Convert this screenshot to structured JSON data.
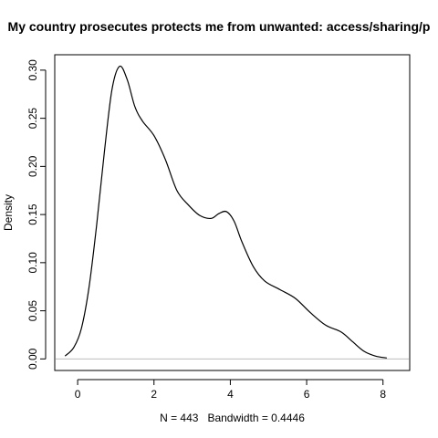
{
  "chart_data": {
    "type": "line",
    "title": "My country prosecutes protects me from unwanted: access/sharing/p",
    "xlabel": "N = 443   Bandwidth = 0.4446",
    "ylabel": "Density",
    "xlim": [
      -0.6,
      8.7
    ],
    "ylim": [
      -0.012,
      0.316
    ],
    "x_ticks": [
      0,
      2,
      4,
      6,
      8
    ],
    "x_tick_labels": [
      "0",
      "2",
      "4",
      "6",
      "8"
    ],
    "y_ticks": [
      0.0,
      0.05,
      0.1,
      0.15,
      0.2,
      0.25,
      0.3
    ],
    "y_tick_labels": [
      "0.00",
      "0.05",
      "0.10",
      "0.15",
      "0.20",
      "0.25",
      "0.30"
    ],
    "grid": false,
    "series": [
      {
        "x": [
          -0.33,
          -0.1,
          0.1,
          0.3,
          0.5,
          0.7,
          0.9,
          1.1,
          1.3,
          1.5,
          1.7,
          2.0,
          2.3,
          2.6,
          2.9,
          3.2,
          3.5,
          3.7,
          3.9,
          4.1,
          4.3,
          4.6,
          4.9,
          5.3,
          5.7,
          6.1,
          6.5,
          6.9,
          7.2,
          7.5,
          7.8,
          8.1
        ],
        "y": [
          0.003,
          0.012,
          0.032,
          0.075,
          0.14,
          0.215,
          0.28,
          0.304,
          0.29,
          0.262,
          0.247,
          0.232,
          0.207,
          0.175,
          0.16,
          0.149,
          0.146,
          0.151,
          0.153,
          0.143,
          0.122,
          0.096,
          0.081,
          0.072,
          0.063,
          0.048,
          0.035,
          0.028,
          0.018,
          0.008,
          0.003,
          0.001
        ]
      }
    ]
  }
}
